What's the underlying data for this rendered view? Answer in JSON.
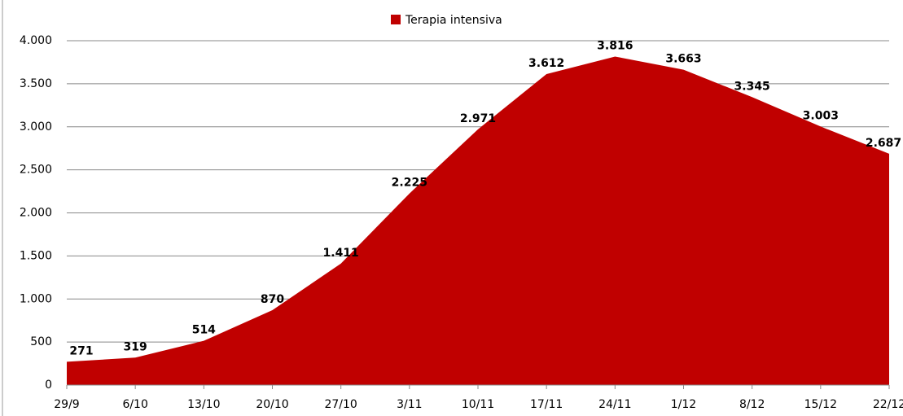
{
  "chart_data": {
    "type": "area",
    "categories": [
      "29/9",
      "6/10",
      "13/10",
      "20/10",
      "27/10",
      "3/11",
      "10/11",
      "17/11",
      "24/11",
      "1/12",
      "8/12",
      "15/12",
      "22/12"
    ],
    "series": [
      {
        "name": "Terapia intensiva",
        "color": "#c00000",
        "values": [
          271,
          319,
          514,
          870,
          1411,
          2225,
          2971,
          3612,
          3816,
          3663,
          3345,
          3003,
          2687
        ],
        "value_labels": [
          "271",
          "319",
          "514",
          "870",
          "1.411",
          "2.225",
          "2.971",
          "3.612",
          "3.816",
          "3.663",
          "3.345",
          "3.003",
          "2.687"
        ]
      }
    ],
    "ylim": [
      0,
      4000
    ],
    "yticks": [
      0,
      500,
      {
        "value": 1000,
        "label": "1.000"
      },
      {
        "value": 1500,
        "label": "1.500"
      },
      {
        "value": 2000,
        "label": "2.000"
      },
      {
        "value": 2500,
        "label": "2.500"
      },
      {
        "value": 3000,
        "label": "3.000"
      },
      {
        "value": 3500,
        "label": "3.500"
      },
      {
        "value": 4000,
        "label": "4.000"
      }
    ],
    "grid": true,
    "legend": "top"
  }
}
